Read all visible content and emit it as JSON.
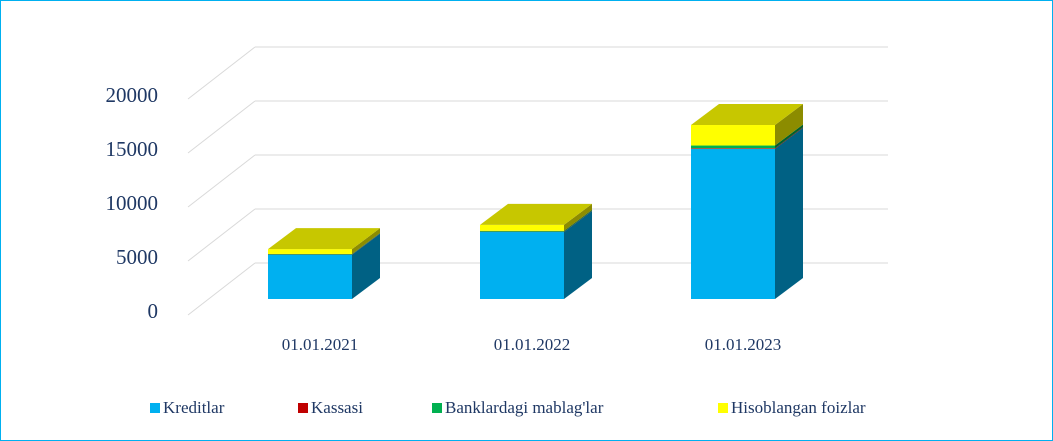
{
  "chart_data": {
    "type": "bar3d_stacked",
    "categories": [
      "01.01.2021",
      "01.01.2022",
      "01.01.2023"
    ],
    "series": [
      {
        "name": "Kreditlar",
        "color": "#00b0f0",
        "values": [
          4100,
          6200,
          13900
        ]
      },
      {
        "name": "Kassasi",
        "color": "#c00000",
        "values": [
          20,
          30,
          60
        ]
      },
      {
        "name": "Banklardagi mablag'lar",
        "color": "#00b050",
        "values": [
          50,
          80,
          250
        ]
      },
      {
        "name": "Hisoblangan foizlar",
        "color": "#ffff00",
        "values": [
          450,
          550,
          1900
        ]
      }
    ],
    "ylim": [
      0,
      20000
    ],
    "yticks": [
      0,
      5000,
      10000,
      15000,
      20000
    ],
    "grid": true,
    "legend": "bottom"
  }
}
